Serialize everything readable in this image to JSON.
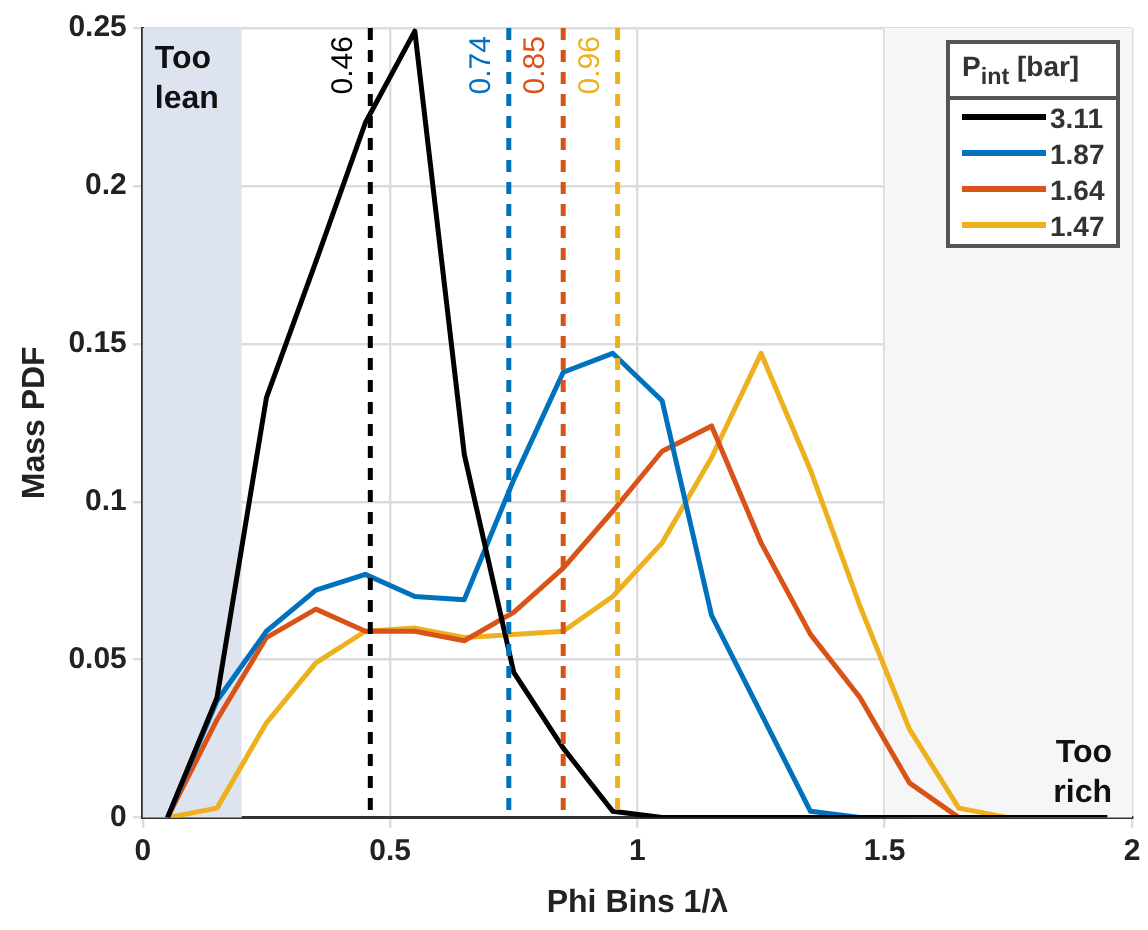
{
  "chart_data": {
    "type": "line",
    "xlabel": "Phi Bins 1/λ",
    "ylabel": "Mass PDF",
    "legend_title": "P$_{int}$ [bar]",
    "x": [
      0.05,
      0.15,
      0.25,
      0.35,
      0.45,
      0.55,
      0.65,
      0.75,
      0.85,
      0.95,
      1.05,
      1.15,
      1.25,
      1.35,
      1.45,
      1.55,
      1.65,
      1.75,
      1.85,
      1.95
    ],
    "series": [
      {
        "name": "3.11",
        "color": "#000000",
        "values": [
          0,
          0.038,
          0.133,
          0.176,
          0.22,
          0.249,
          0.115,
          0.046,
          0.022,
          0.002,
          0,
          0,
          0,
          0,
          0,
          0,
          0,
          0,
          0,
          0
        ]
      },
      {
        "name": "1.87",
        "color": "#0072bd",
        "values": [
          0,
          0.037,
          0.059,
          0.072,
          0.077,
          0.07,
          0.069,
          0.107,
          0.141,
          0.147,
          0.132,
          0.064,
          0.033,
          0.002,
          0,
          0,
          null,
          null,
          null,
          null
        ]
      },
      {
        "name": "1.64",
        "color": "#d95319",
        "values": [
          0,
          0.031,
          0.057,
          0.066,
          0.059,
          0.059,
          0.056,
          0.065,
          0.079,
          0.097,
          0.116,
          0.124,
          0.087,
          0.058,
          0.038,
          0.011,
          0,
          0,
          null,
          null
        ]
      },
      {
        "name": "1.47",
        "color": "#edb120",
        "values": [
          0,
          0.003,
          0.03,
          0.049,
          0.059,
          0.06,
          0.057,
          0.058,
          0.059,
          0.07,
          0.087,
          0.114,
          0.147,
          0.11,
          0.067,
          0.028,
          0.003,
          0,
          0,
          0
        ]
      }
    ],
    "xlim": [
      0,
      2
    ],
    "xticks": [
      0,
      0.5,
      1,
      1.5,
      2
    ],
    "ylim": [
      0,
      0.25
    ],
    "yticks": [
      0,
      0.05,
      0.1,
      0.15,
      0.2,
      0.25
    ],
    "ref_lines": [
      {
        "axis": "x",
        "value": 0.46,
        "label": "0.46",
        "color": "#000000",
        "line_style": "dashed"
      },
      {
        "axis": "x",
        "value": 0.74,
        "label": "0.74",
        "color": "#0072bd",
        "line_style": "dashed"
      },
      {
        "axis": "x",
        "value": 0.85,
        "label": "0.85",
        "color": "#d95319",
        "line_style": "dashed"
      },
      {
        "axis": "x",
        "value": 0.96,
        "label": "0.96",
        "color": "#edb120",
        "line_style": "dashed"
      }
    ],
    "bands": [
      {
        "axis": "x",
        "from": 0,
        "to": 0.2,
        "label": "Too lean",
        "color": "#dde4f0"
      },
      {
        "axis": "x",
        "from": 1.5,
        "to": 2,
        "label": "Too rich",
        "color": "#f6f6f6"
      }
    ],
    "grid": true,
    "legend": "top right",
    "marker": "none",
    "line_style": "solid"
  }
}
